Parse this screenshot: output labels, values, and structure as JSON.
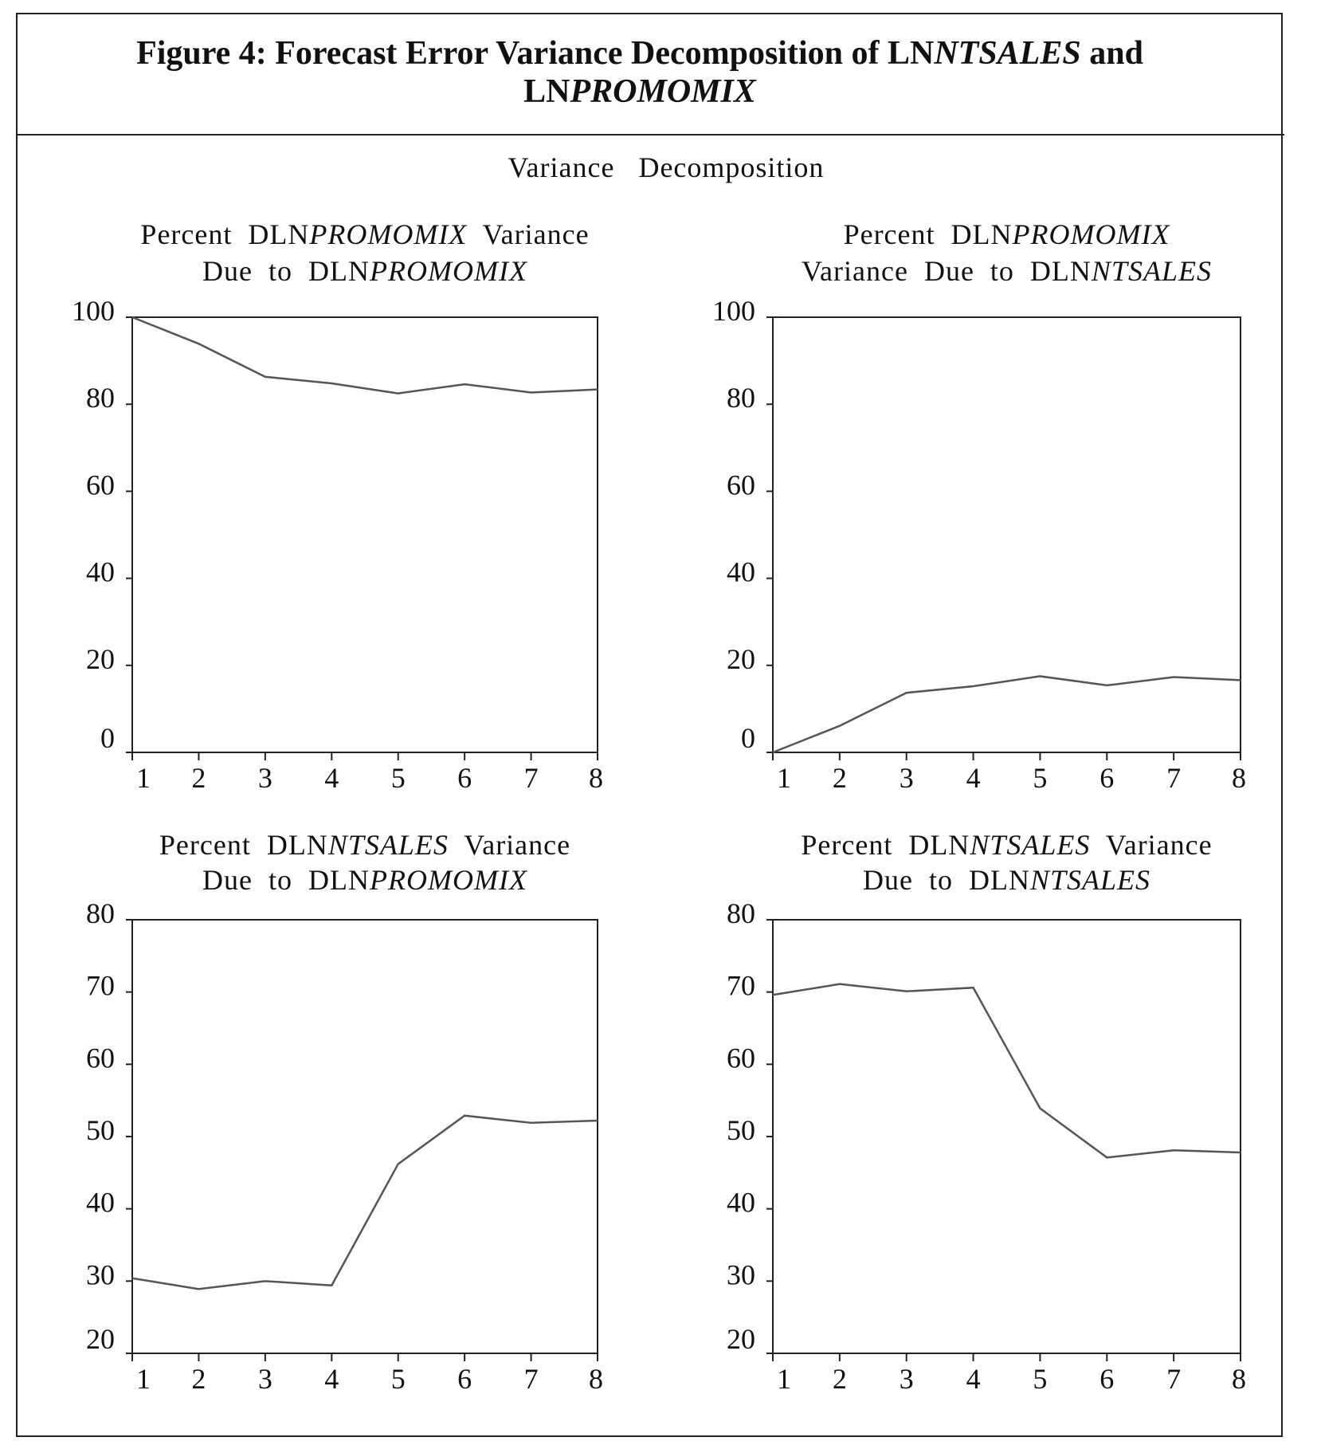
{
  "figure": {
    "title_line1": [
      {
        "text": "Figure 4: Forecast Error Variance Decomposition of LN",
        "italic": false
      },
      {
        "text": "NTSALES",
        "italic": true
      },
      {
        "text": " and",
        "italic": false
      }
    ],
    "title_line2": [
      {
        "text": "LN",
        "italic": false
      },
      {
        "text": "PROMOMIX",
        "italic": true
      }
    ],
    "subtitle": "Variance   Decomposition"
  },
  "chart_data": [
    {
      "type": "line",
      "title": [
        [
          {
            "text": "Percent  DLN",
            "italic": false
          },
          {
            "text": "PROMOMIX",
            "italic": true
          },
          {
            "text": "  Variance",
            "italic": false
          }
        ],
        [
          {
            "text": "Due  to  DLN",
            "italic": false
          },
          {
            "text": "PROMOMIX",
            "italic": true
          }
        ]
      ],
      "x": [
        1,
        2,
        3,
        4,
        5,
        6,
        7,
        8
      ],
      "values": [
        100,
        93.9,
        86.3,
        84.8,
        82.5,
        84.6,
        82.7,
        83.4
      ],
      "ylim": [
        0,
        100
      ],
      "yticks": [
        0,
        20,
        40,
        60,
        80,
        100
      ],
      "grid": false,
      "line_color": "#555555"
    },
    {
      "type": "line",
      "title": [
        [
          {
            "text": "Percent  DLN",
            "italic": false
          },
          {
            "text": "PROMOMIX",
            "italic": true
          }
        ],
        [
          {
            "text": "Variance  Due  to  DLN",
            "italic": false
          },
          {
            "text": "NTSALES",
            "italic": true
          }
        ]
      ],
      "x": [
        1,
        2,
        3,
        4,
        5,
        6,
        7,
        8
      ],
      "values": [
        0,
        6.1,
        13.7,
        15.2,
        17.5,
        15.4,
        17.3,
        16.6
      ],
      "ylim": [
        0,
        100
      ],
      "yticks": [
        0,
        20,
        40,
        60,
        80,
        100
      ],
      "grid": false,
      "line_color": "#555555"
    },
    {
      "type": "line",
      "title": [
        [
          {
            "text": "Percent  DLN",
            "italic": false
          },
          {
            "text": "NTSALES",
            "italic": true
          },
          {
            "text": "  Variance",
            "italic": false
          }
        ],
        [
          {
            "text": "Due  to  DLN",
            "italic": false
          },
          {
            "text": "PROMOMIX",
            "italic": true
          }
        ]
      ],
      "x": [
        1,
        2,
        3,
        4,
        5,
        6,
        7,
        8
      ],
      "values": [
        30.4,
        28.9,
        30.0,
        29.4,
        46.2,
        52.9,
        51.9,
        52.2
      ],
      "ylim": [
        20,
        80
      ],
      "yticks": [
        20,
        30,
        40,
        50,
        60,
        70,
        80
      ],
      "grid": false,
      "line_color": "#555555"
    },
    {
      "type": "line",
      "title": [
        [
          {
            "text": "Percent  DLN",
            "italic": false
          },
          {
            "text": "NTSALES",
            "italic": true
          },
          {
            "text": "  Variance",
            "italic": false
          }
        ],
        [
          {
            "text": "Due  to  DLN",
            "italic": false
          },
          {
            "text": "NTSALES",
            "italic": true
          }
        ]
      ],
      "x": [
        1,
        2,
        3,
        4,
        5,
        6,
        7,
        8
      ],
      "values": [
        69.6,
        71.1,
        70.1,
        70.6,
        53.9,
        47.1,
        48.1,
        47.8
      ],
      "ylim": [
        20,
        80
      ],
      "yticks": [
        20,
        30,
        40,
        50,
        60,
        70,
        80
      ],
      "grid": false,
      "line_color": "#555555"
    }
  ]
}
